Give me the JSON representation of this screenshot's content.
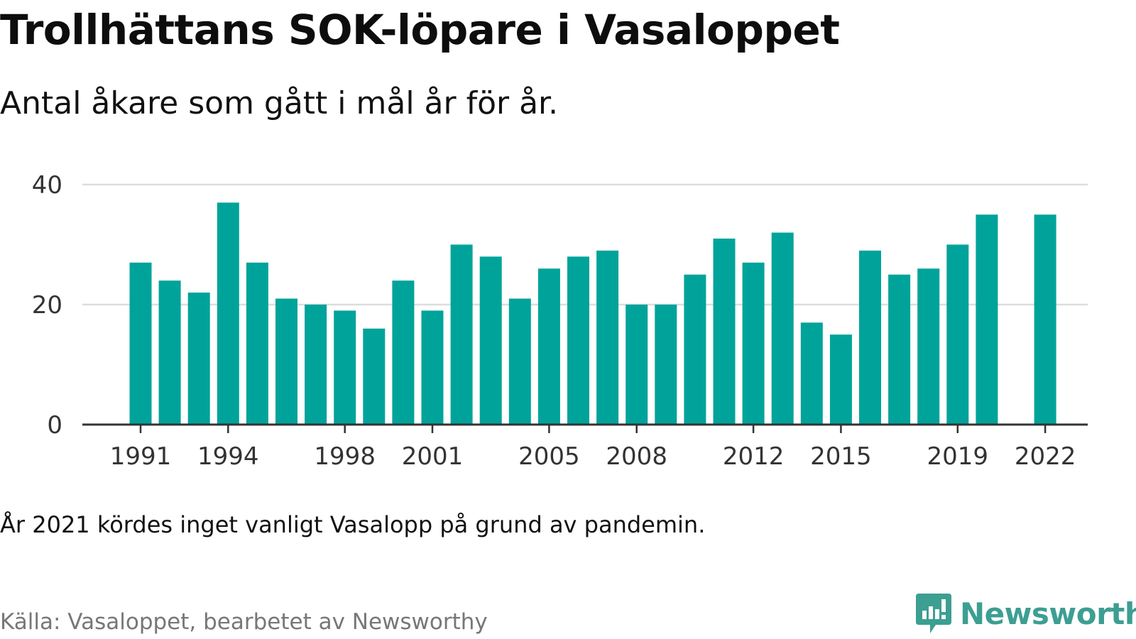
{
  "header": {
    "title": "Trollhättans SOK-löpare i Vasaloppet",
    "subtitle": "Antal åkare som gått i mål år för år."
  },
  "note": "År 2021 kördes inget vanligt Vasalopp på grund av pandemin.",
  "footer": {
    "source": "Källa: Vasaloppet, bearbetet av Newsworthy",
    "brand_name": "Newsworthy",
    "brand_icon": "newsworthy-logo-icon"
  },
  "colors": {
    "bar": "#00a39a",
    "brand": "#3d9e92",
    "grid": "#dddddd",
    "axis": "#333333"
  },
  "chart_data": {
    "type": "bar",
    "title": "Trollhättans SOK-löpare i Vasaloppet",
    "subtitle": "Antal åkare som gått i mål år för år.",
    "xlabel": "",
    "ylabel": "",
    "categories": [
      1991,
      1992,
      1993,
      1994,
      1995,
      1996,
      1997,
      1998,
      1999,
      2000,
      2001,
      2002,
      2003,
      2004,
      2005,
      2006,
      2007,
      2008,
      2009,
      2010,
      2011,
      2012,
      2013,
      2014,
      2015,
      2016,
      2017,
      2018,
      2019,
      2020,
      2021,
      2022
    ],
    "values": [
      27,
      24,
      22,
      37,
      27,
      21,
      20,
      19,
      16,
      24,
      19,
      30,
      28,
      21,
      26,
      28,
      29,
      20,
      20,
      25,
      31,
      27,
      32,
      17,
      15,
      29,
      25,
      26,
      30,
      35,
      null,
      35
    ],
    "ylim": [
      0,
      40
    ],
    "yticks": [
      0,
      20,
      40
    ],
    "xticks": [
      "1991",
      "1994",
      "1998",
      "2001",
      "2005",
      "2008",
      "2012",
      "2015",
      "2019",
      "2022"
    ],
    "grid": true,
    "legend": "none"
  }
}
